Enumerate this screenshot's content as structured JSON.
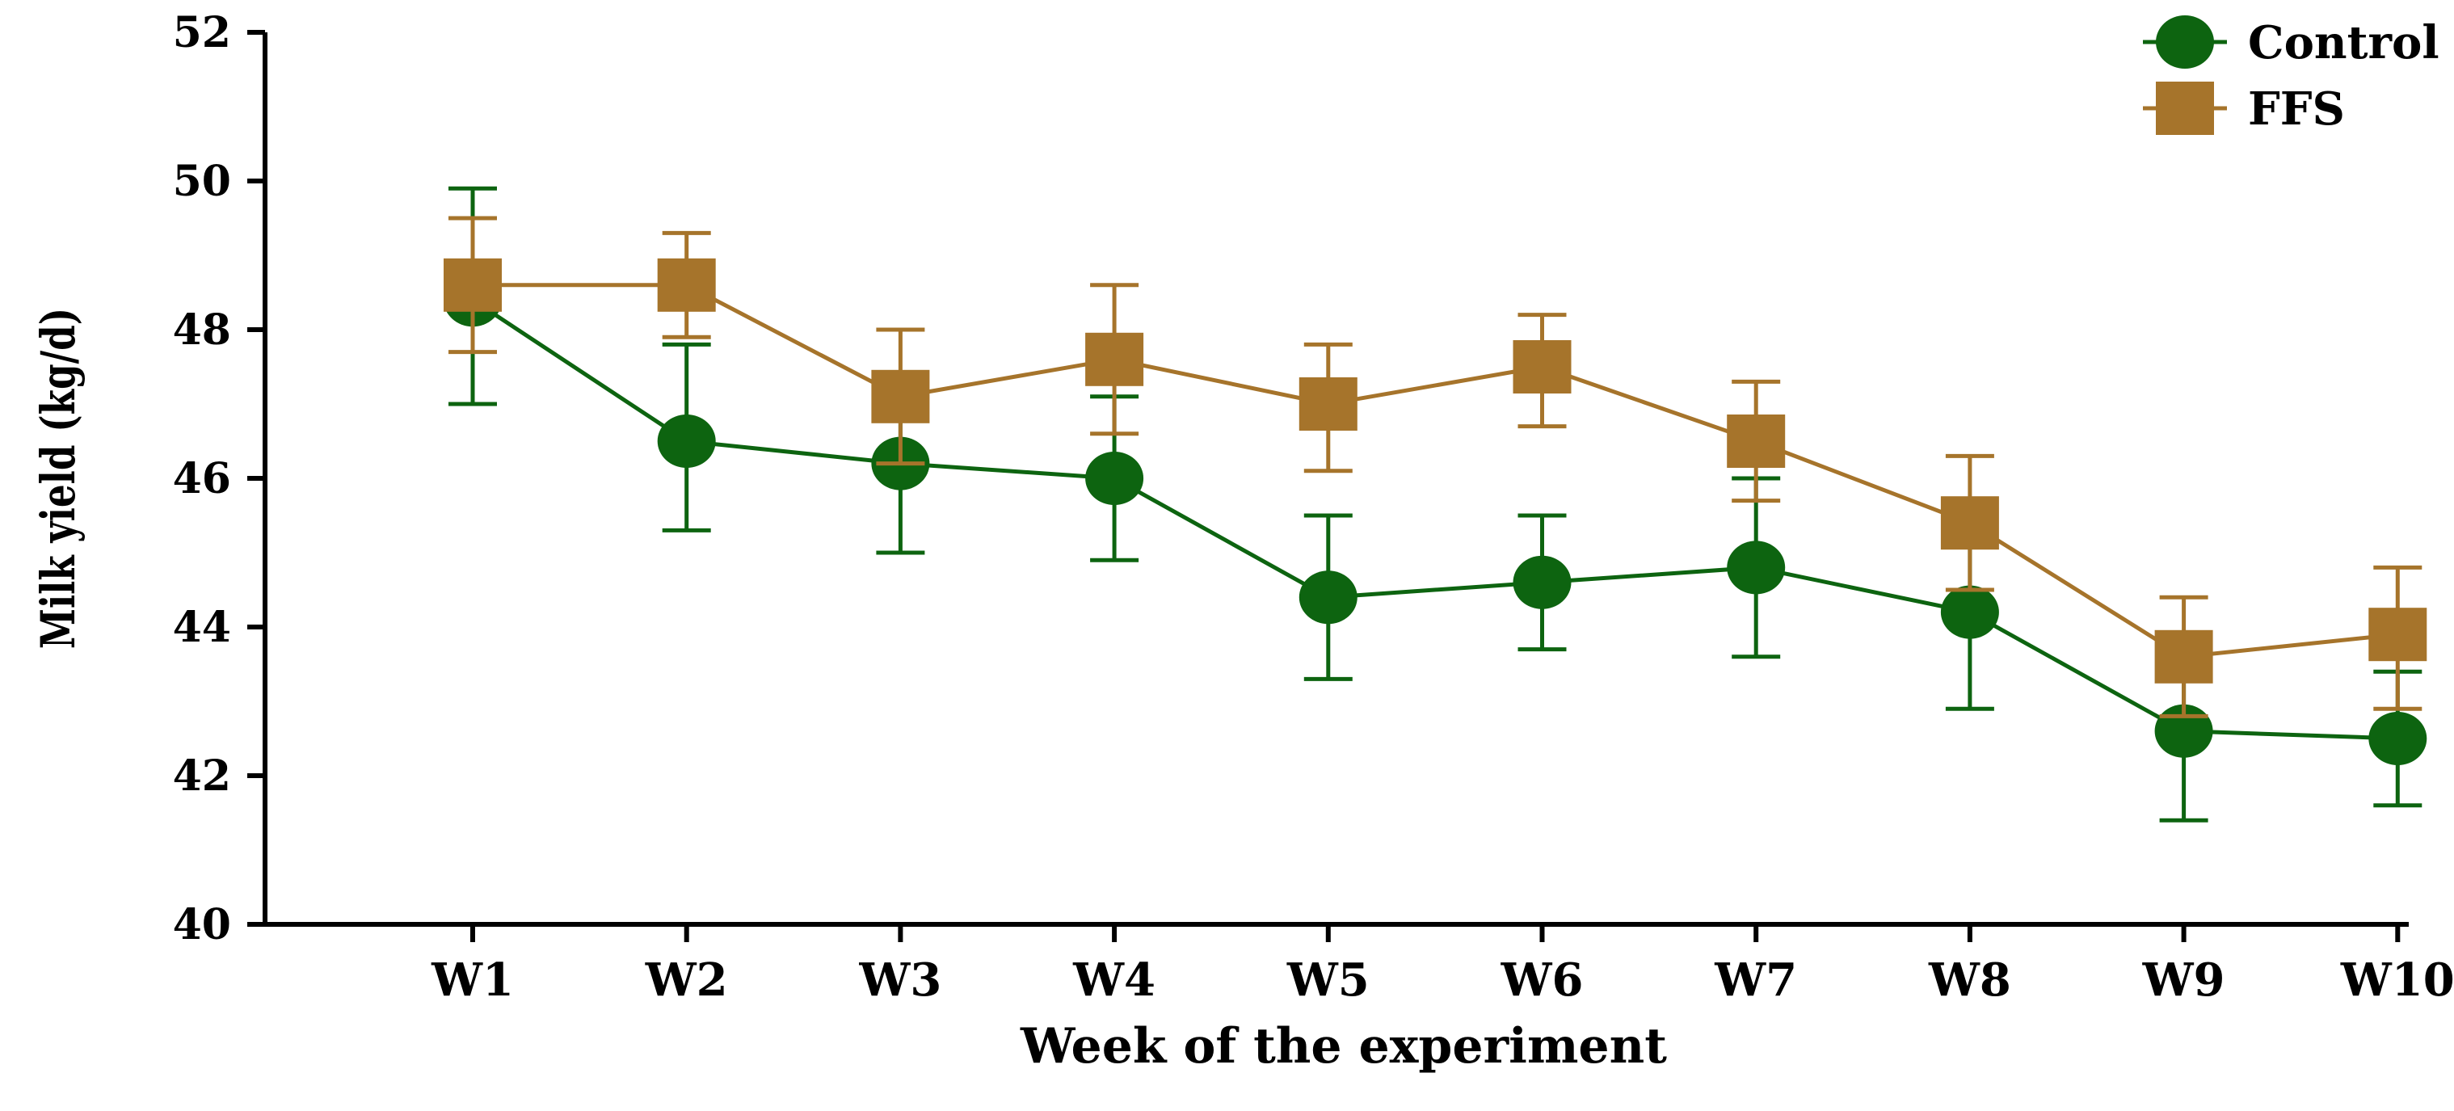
{
  "chart_data": {
    "type": "line",
    "title": "",
    "xlabel": "Week of the experiment",
    "ylabel": "Milk yield (kg/d)",
    "categories": [
      "W1",
      "W2",
      "W3",
      "W4",
      "W5",
      "W6",
      "W7",
      "W8",
      "W9",
      "W10"
    ],
    "ylim": [
      40,
      52
    ],
    "yticks": [
      40,
      42,
      44,
      46,
      48,
      50,
      52
    ],
    "ytick_labels": [
      "40",
      "42",
      "44",
      "46",
      "48",
      "50",
      "52"
    ],
    "grid": false,
    "legend_position": "top-right",
    "series": [
      {
        "name": "Control",
        "marker": "circle",
        "color": "#0d6410",
        "values": [
          48.4,
          46.5,
          46.2,
          46.0,
          44.4,
          44.6,
          44.8,
          44.2,
          42.6,
          42.5
        ],
        "err_low": [
          47.0,
          45.3,
          45.0,
          44.9,
          43.3,
          43.7,
          43.6,
          42.9,
          41.4,
          41.6
        ],
        "err_high": [
          49.9,
          47.8,
          47.4,
          47.1,
          45.5,
          45.5,
          46.0,
          45.5,
          43.8,
          43.4
        ]
      },
      {
        "name": "FFS",
        "marker": "square",
        "color": "#a6742b",
        "values": [
          48.6,
          48.6,
          47.1,
          47.6,
          47.0,
          47.5,
          46.5,
          45.4,
          43.6,
          43.9
        ],
        "err_low": [
          47.7,
          47.9,
          46.2,
          46.6,
          46.1,
          46.7,
          45.7,
          44.5,
          42.8,
          42.9
        ],
        "err_high": [
          49.5,
          49.3,
          48.0,
          48.6,
          47.8,
          48.2,
          47.3,
          46.3,
          44.4,
          44.8
        ]
      }
    ]
  }
}
